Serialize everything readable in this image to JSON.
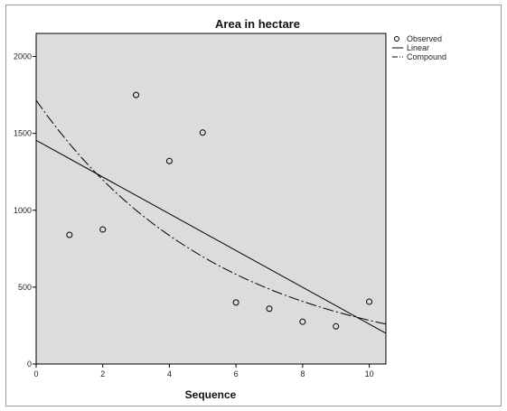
{
  "chart_data": {
    "type": "scatter",
    "title": "Area in hectare",
    "xlabel": "Sequence",
    "ylabel": "",
    "xlim": [
      0,
      10.5
    ],
    "ylim": [
      0,
      2150
    ],
    "x_ticks": [
      0,
      2,
      4,
      6,
      8,
      10
    ],
    "y_ticks": [
      0,
      500,
      1000,
      1500,
      2000
    ],
    "grid": false,
    "legend_position": "right",
    "background_color": "#dcdcdc",
    "series": [
      {
        "name": "Observed",
        "type": "scatter",
        "marker": "open-circle",
        "points": [
          {
            "x": 1,
            "y": 840
          },
          {
            "x": 2,
            "y": 875
          },
          {
            "x": 3,
            "y": 1750
          },
          {
            "x": 4,
            "y": 1320
          },
          {
            "x": 5,
            "y": 1505
          },
          {
            "x": 6,
            "y": 400
          },
          {
            "x": 7,
            "y": 360
          },
          {
            "x": 8,
            "y": 275
          },
          {
            "x": 9,
            "y": 245
          },
          {
            "x": 10,
            "y": 405
          }
        ]
      },
      {
        "name": "Linear",
        "type": "line",
        "style": "solid",
        "intercept": 1455,
        "slope": -119.5
      },
      {
        "name": "Compound",
        "type": "line",
        "style": "dash-dot",
        "intercept": 1715,
        "ratio": 0.8355
      }
    ]
  }
}
